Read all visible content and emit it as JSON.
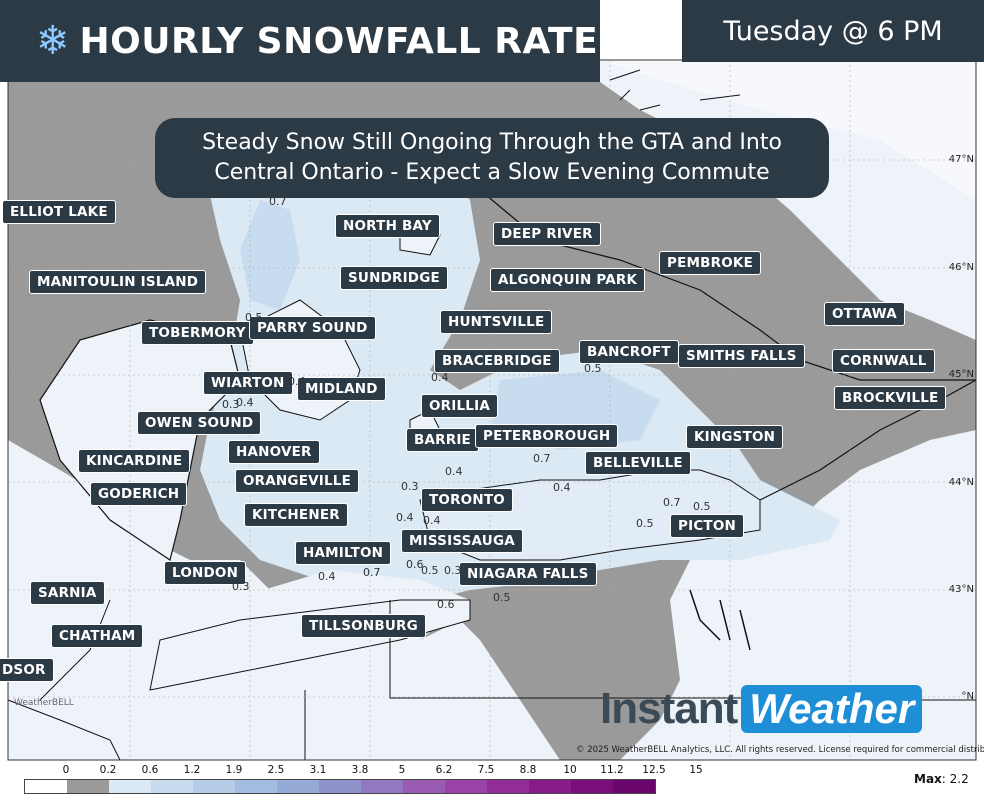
{
  "header": {
    "title_icon": "snowflake-icon",
    "title": "HOURLY SNOWFALL RATE",
    "time": "Tuesday @ 6 PM"
  },
  "headline": {
    "line1": "Steady Snow Still Ongoing Through the GTA and Into",
    "line2": "Central Ontario - Expect a Slow Evening Commute"
  },
  "cities": [
    "ELLIOT LAKE",
    "NORTH BAY",
    "DEEP RIVER",
    "MANITOULIN ISLAND",
    "SUNDRIDGE",
    "ALGONQUIN PARK",
    "PEMBROKE",
    "TOBERMORY",
    "PARRY SOUND",
    "HUNTSVILLE",
    "OTTAWA",
    "BRACEBRIDGE",
    "BANCROFT",
    "SMITHS FALLS",
    "CORNWALL",
    "WIARTON",
    "MIDLAND",
    "BROCKVILLE",
    "OWEN SOUND",
    "ORILLIA",
    "BARRIE",
    "PETERBOROUGH",
    "KINGSTON",
    "HANOVER",
    "KINCARDINE",
    "BELLEVILLE",
    "ORANGEVILLE",
    "GODERICH",
    "TORONTO",
    "KITCHENER",
    "PICTON",
    "MISSISSAUGA",
    "HAMILTON",
    "LONDON",
    "NIAGARA FALLS",
    "SARNIA",
    "TILLSONBURG",
    "CHATHAM",
    "DSOR"
  ],
  "values": [
    "0.7",
    "0.5",
    "0.4",
    "0.5",
    "0.4",
    "0.3",
    "0.4",
    "0.7",
    "0.4",
    "0.3",
    "0.4",
    "0.7",
    "0.5",
    "0.5",
    "0.4",
    "0.4",
    "0.6",
    "0.5",
    "0.3",
    "0.3",
    "0.4",
    "0.7",
    "0.6",
    "0.5"
  ],
  "latitudes": [
    "47°N",
    "46°N",
    "45°N",
    "44°N",
    "43°N",
    "°N"
  ],
  "copyright": "© 2025 WeatherBELL Analytics, LLC. All rights reserved. License required for commercial distribution.",
  "brand": {
    "part1": "Instant",
    "part2": "Weather",
    "small_logo": "WeatherBELL"
  },
  "legend": {
    "ticks": [
      "0",
      "0.2",
      "0.6",
      "1.2",
      "1.9",
      "2.5",
      "3.1",
      "3.8",
      "5",
      "6.2",
      "7.5",
      "8.8",
      "10",
      "11.2",
      "12.5",
      "15"
    ],
    "colors": [
      "#ffffff",
      "#9a9a9a",
      "#dbe9f5",
      "#c8dcef",
      "#b5cde8",
      "#a3bde0",
      "#96aad6",
      "#8e93cc",
      "#9278c0",
      "#9a5cb3",
      "#9a43a6",
      "#922d98",
      "#871b8a",
      "#7a0f7c",
      "#6a056c"
    ],
    "max_label": "Max",
    "max_value": ": 2.2"
  },
  "colors": {
    "panel": "#2c3a45",
    "no_snow": "#9a9a9a",
    "light_snow": "#dbe9f5",
    "land": "#f2f5fa"
  }
}
